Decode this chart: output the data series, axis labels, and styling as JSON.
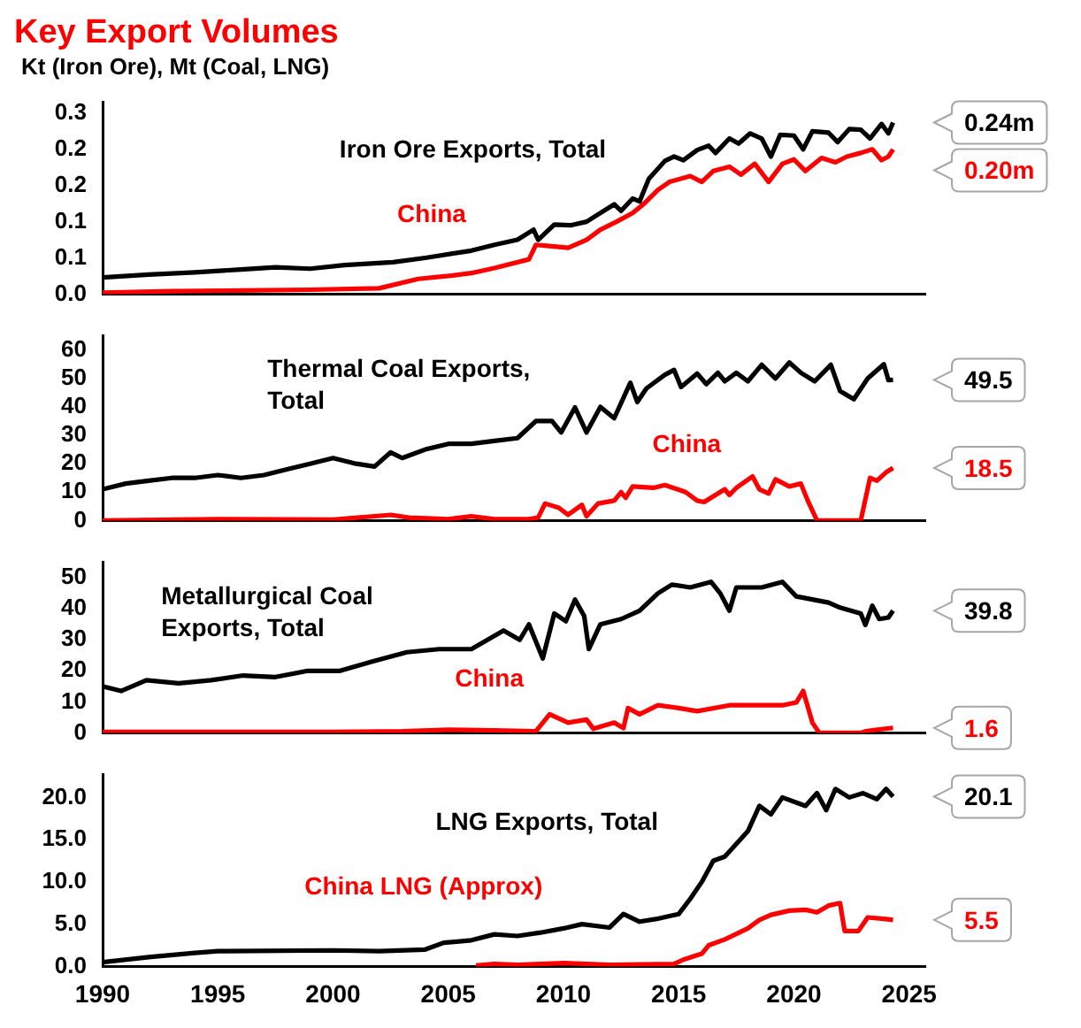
{
  "chart_data": [
    {
      "type": "line",
      "title": "Key Export Volumes",
      "ylabel": "Kt (Iron Ore), Mt (Coal, LNG)",
      "xlim": [
        1990,
        2025.7
      ],
      "xticks": [
        1990,
        1995,
        2000,
        2005,
        2010,
        2015,
        2020,
        2025
      ],
      "ylim": [
        0,
        0.265
      ],
      "yticks": [
        {
          "value": 0,
          "label": "0.0"
        },
        {
          "value": 0.05,
          "label": "0.1"
        },
        0.1,
        {
          "value": 0.15,
          "label": "0.2"
        },
        0.2,
        {
          "value": 0.25,
          "label": "0.3"
        }
      ],
      "tick_labels": "y",
      "series": [
        {
          "name": "Iron Ore Exports, Total",
          "color": "#000000",
          "x": [
            1990,
            1992,
            1994,
            1996,
            1997.5,
            1999,
            2000.5,
            2002.6,
            2004,
            2006,
            2007,
            2008,
            2008.7,
            2008.9,
            2009.6,
            2010.3,
            2011,
            2011.5,
            2012.2,
            2012.5,
            2013,
            2013.3,
            2013.7,
            2014.4,
            2014.8,
            2015.2,
            2015.8,
            2016.3,
            2016.6,
            2017.2,
            2017.6,
            2018.1,
            2018.6,
            2019,
            2019.4,
            2020,
            2020.4,
            2020.8,
            2021.5,
            2021.9,
            2022.4,
            2022.9,
            2023.3,
            2023.8,
            2024.1,
            2024.3
          ],
          "values": [
            0.023,
            0.027,
            0.03,
            0.034,
            0.037,
            0.035,
            0.04,
            0.044,
            0.05,
            0.06,
            0.068,
            0.075,
            0.089,
            0.075,
            0.096,
            0.095,
            0.1,
            0.11,
            0.124,
            0.115,
            0.132,
            0.128,
            0.159,
            0.184,
            0.19,
            0.185,
            0.199,
            0.205,
            0.195,
            0.215,
            0.208,
            0.222,
            0.215,
            0.19,
            0.22,
            0.219,
            0.2,
            0.225,
            0.223,
            0.21,
            0.228,
            0.227,
            0.215,
            0.235,
            0.222,
            0.237
          ]
        },
        {
          "name": "China",
          "color": "#ff0000",
          "x": [
            1990,
            1993,
            1996,
            1999,
            2002,
            2003.7,
            2005,
            2006,
            2007,
            2008.5,
            2008.8,
            2009.5,
            2010.2,
            2011,
            2011.6,
            2012.3,
            2013,
            2013.5,
            2014.1,
            2014.6,
            2015.5,
            2016,
            2016.5,
            2017.2,
            2017.7,
            2018.3,
            2018.9,
            2019.5,
            2020,
            2020.5,
            2021.2,
            2021.8,
            2022.3,
            2022.9,
            2023.4,
            2023.8,
            2024.1,
            2024.3
          ],
          "values": [
            0.002,
            0.004,
            0.005,
            0.006,
            0.008,
            0.021,
            0.025,
            0.029,
            0.036,
            0.048,
            0.068,
            0.066,
            0.064,
            0.075,
            0.089,
            0.1,
            0.112,
            0.125,
            0.144,
            0.155,
            0.163,
            0.155,
            0.17,
            0.176,
            0.165,
            0.18,
            0.155,
            0.18,
            0.186,
            0.17,
            0.188,
            0.182,
            0.19,
            0.195,
            0.2,
            0.185,
            0.19,
            0.2
          ]
        }
      ],
      "annotations": [
        "0.24m",
        "0.20m"
      ]
    },
    {
      "type": "line",
      "xlim": [
        1990,
        2025.7
      ],
      "xticks": [
        1990,
        1995,
        2000,
        2005,
        2010,
        2015,
        2020,
        2025
      ],
      "ylim": [
        0,
        65
      ],
      "yticks": [
        0,
        10,
        20,
        30,
        40,
        50,
        60
      ],
      "tick_labels": "y",
      "series": [
        {
          "name": "Thermal Coal Exports, Total",
          "color": "#000000",
          "x": [
            1990,
            1991,
            1992,
            1993,
            1994,
            1995,
            1996,
            1997,
            1998,
            1999,
            2000,
            2001,
            2001.8,
            2002.5,
            2003,
            2004,
            2005,
            2006,
            2007,
            2008,
            2008.8,
            2009.5,
            2009.9,
            2010.5,
            2011,
            2011.6,
            2012.2,
            2012.9,
            2013.2,
            2013.6,
            2014.4,
            2014.8,
            2015.1,
            2015.8,
            2016.2,
            2016.7,
            2017,
            2017.5,
            2018,
            2018.6,
            2019.2,
            2019.8,
            2020.3,
            2020.9,
            2021.6,
            2022,
            2022.6,
            2023.2,
            2023.9,
            2024.1,
            2024.3
          ],
          "values": [
            11,
            13,
            14,
            15,
            15,
            16,
            15,
            16,
            18,
            20,
            22,
            20,
            19,
            24,
            22,
            25,
            27,
            27,
            28,
            29,
            35,
            35,
            31,
            39.8,
            31,
            40,
            36,
            48.5,
            41.7,
            46.5,
            51.3,
            53,
            47,
            51.7,
            48,
            52,
            49,
            52,
            49,
            54.8,
            50,
            55.6,
            52,
            49,
            54.8,
            45.6,
            42.7,
            50,
            55,
            49.4,
            49.5
          ]
        },
        {
          "name": "China",
          "color": "#ff0000",
          "x": [
            1990,
            1995,
            2000,
            2002.5,
            2003.3,
            2005,
            2006,
            2007,
            2008.5,
            2008.9,
            2009.2,
            2009.8,
            2010.2,
            2010.8,
            2011,
            2011.5,
            2012.2,
            2012.5,
            2012.7,
            2013,
            2013.9,
            2014.4,
            2015.3,
            2015.8,
            2016.1,
            2017,
            2017.2,
            2017.5,
            2018.2,
            2018.5,
            2018.9,
            2019.2,
            2019.8,
            2020.3,
            2020.6,
            2021,
            2022.9,
            2023.3,
            2023.6,
            2024,
            2024.3
          ],
          "values": [
            0,
            0.5,
            0.3,
            2,
            1,
            0.5,
            1.5,
            0.5,
            0.5,
            1,
            6,
            4.5,
            2,
            5.5,
            1.5,
            6,
            7,
            10,
            8,
            12,
            11.5,
            12.5,
            10,
            7,
            6.5,
            11,
            9,
            11.5,
            15.5,
            11,
            9.5,
            14.5,
            12,
            13,
            7,
            0,
            0,
            15,
            14,
            17,
            18.5
          ]
        }
      ],
      "annotations": [
        "49.5",
        "18.5"
      ]
    },
    {
      "type": "line",
      "xlim": [
        1990,
        2025.7
      ],
      "xticks": [
        1990,
        1995,
        2000,
        2005,
        2010,
        2015,
        2020,
        2025
      ],
      "ylim": [
        0,
        55
      ],
      "yticks": [
        0,
        10,
        20,
        30,
        40,
        50
      ],
      "tick_labels": "y",
      "series": [
        {
          "name": "Metallurgical Coal Exports, Total",
          "color": "#000000",
          "x": [
            1990,
            1990.8,
            1991.9,
            1993.3,
            1994.7,
            1996.1,
            1997.5,
            1998.9,
            2000.3,
            2001.7,
            2003.2,
            2004.6,
            2006,
            2007.4,
            2008.1,
            2008.5,
            2009.1,
            2009.6,
            2010.1,
            2010.5,
            2010.9,
            2011.1,
            2011.6,
            2012.5,
            2013.3,
            2014.1,
            2014.7,
            2015.5,
            2016.4,
            2016.8,
            2017.2,
            2017.5,
            2018.6,
            2019.5,
            2020.1,
            2021.5,
            2022,
            2022.9,
            2023.1,
            2023.4,
            2023.7,
            2024.1,
            2024.3
          ],
          "values": [
            15,
            13.5,
            17,
            16,
            17,
            18.5,
            18,
            20,
            20,
            23,
            26,
            27,
            27,
            33,
            30,
            35,
            24,
            38.5,
            36,
            43,
            37.6,
            27,
            35,
            36.7,
            39.4,
            45,
            47.8,
            46.9,
            48.7,
            45,
            39.4,
            46.9,
            46.9,
            48.7,
            44,
            42,
            40.4,
            38.5,
            34.8,
            41,
            36.7,
            37.2,
            39.4
          ]
        },
        {
          "name": "China",
          "color": "#ff0000",
          "x": [
            1990,
            1995,
            2000,
            2003,
            2005,
            2007,
            2008.8,
            2009.4,
            2010.2,
            2011,
            2011.3,
            2012.2,
            2012.6,
            2012.8,
            2013.3,
            2014.1,
            2015,
            2015.8,
            2017.2,
            2018.6,
            2019.5,
            2020.1,
            2020.4,
            2020.8,
            2021.1,
            2022.9,
            2023.1,
            2023.7,
            2024.3
          ],
          "values": [
            0.3,
            0.3,
            0.3,
            0.5,
            1,
            0.8,
            0.5,
            6,
            3.3,
            4.3,
            1.3,
            3.3,
            1.5,
            8,
            6,
            8.9,
            8,
            7,
            8.9,
            8.9,
            8.9,
            9.8,
            13.5,
            3.3,
            0,
            0,
            0.5,
            1.1,
            1.6
          ]
        }
      ],
      "annotations": [
        "39.8",
        "1.6"
      ]
    },
    {
      "type": "line",
      "xlim": [
        1990,
        2025.7
      ],
      "xticks": [
        1990,
        1995,
        2000,
        2005,
        2010,
        2015,
        2020,
        2025
      ],
      "ylim": [
        0,
        22.7
      ],
      "yticks": [
        {
          "value": 0,
          "label": "0.0"
        },
        {
          "value": 5,
          "label": "5.0"
        },
        {
          "value": 10,
          "label": "10.0"
        },
        {
          "value": 15,
          "label": "15.0"
        },
        {
          "value": 20,
          "label": "20.0"
        }
      ],
      "series": [
        {
          "name": "LNG Exports, Total",
          "color": "#000000",
          "x": [
            1990,
            1992,
            1994,
            1995,
            2000,
            2002,
            2004,
            2004.8,
            2006,
            2007,
            2008,
            2009,
            2010,
            2010.8,
            2012,
            2012.6,
            2013.3,
            2014,
            2015,
            2015.5,
            2016,
            2016.5,
            2017,
            2018,
            2018.5,
            2019,
            2019.5,
            2020.5,
            2021,
            2021.4,
            2021.8,
            2022.4,
            2023,
            2023.6,
            2024,
            2024.3
          ],
          "values": [
            0.5,
            1.1,
            1.6,
            1.8,
            1.9,
            1.8,
            2,
            2.8,
            3.1,
            3.8,
            3.6,
            4,
            4.5,
            5,
            4.6,
            6.2,
            5.3,
            5.6,
            6.2,
            8,
            10,
            12.5,
            13,
            16,
            19,
            18,
            20,
            19,
            20.5,
            18.5,
            21,
            20,
            20.5,
            19.8,
            21,
            20.1
          ]
        },
        {
          "name": "China LNG (Approx)",
          "color": "#ff0000",
          "x": [
            2006.2,
            2007,
            2008,
            2010,
            2012,
            2014.8,
            2015.2,
            2016,
            2016.3,
            2017,
            2018,
            2018.5,
            2019,
            2019.8,
            2020.5,
            2021,
            2021.5,
            2022,
            2022.2,
            2022.8,
            2023.2,
            2024,
            2024.3
          ],
          "values": [
            0.1,
            0.3,
            0.2,
            0.4,
            0.2,
            0.3,
            0.8,
            1.5,
            2.5,
            3.2,
            4.5,
            5.5,
            6.1,
            6.6,
            6.7,
            6.4,
            7.2,
            7.5,
            4.2,
            4.2,
            5.8,
            5.6,
            5.5
          ]
        }
      ],
      "annotations": [
        "20.1",
        "5.5"
      ]
    }
  ]
}
